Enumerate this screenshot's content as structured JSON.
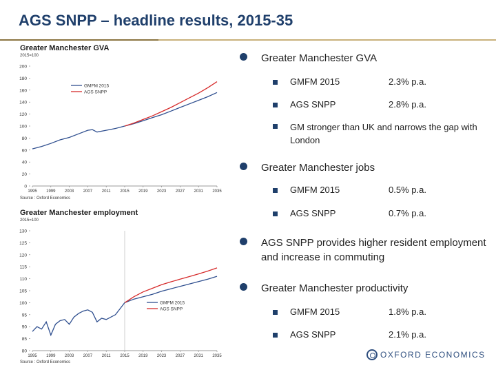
{
  "slide": {
    "title": "AGS SNPP – headline results, 2015-35",
    "logo_text": "OXFORD ECONOMICS"
  },
  "bullets": [
    {
      "text": "Greater Manchester GVA",
      "subs": [
        {
          "label": "GMFM 2015",
          "value": "2.3% p.a."
        },
        {
          "label": "AGS SNPP",
          "value": "2.8% p.a."
        },
        {
          "label": "GM stronger than UK and narrows the gap with London",
          "value": ""
        }
      ]
    },
    {
      "text": "Greater Manchester jobs",
      "subs": [
        {
          "label": "GMFM 2015",
          "value": "0.5% p.a."
        },
        {
          "label": "AGS SNPP",
          "value": "0.7% p.a."
        }
      ]
    },
    {
      "text": "AGS SNPP provides higher resident employment and increase in commuting",
      "subs": []
    },
    {
      "text": "Greater Manchester productivity",
      "subs": [
        {
          "label": "GMFM 2015",
          "value": "1.8% p.a."
        },
        {
          "label": "AGS SNPP",
          "value": "2.1% p.a."
        }
      ]
    }
  ],
  "chart_data": [
    {
      "type": "line",
      "title": "Greater Manchester GVA",
      "subtitle": "2015=100",
      "source": "Source : Oxford Economics",
      "x_ticks": [
        "1995",
        "1999",
        "2003",
        "2007",
        "2011",
        "2015",
        "2019",
        "2023",
        "2027",
        "2031",
        "2035"
      ],
      "ylim": [
        0,
        200
      ],
      "y_ticks": [
        0,
        20,
        40,
        60,
        80,
        100,
        120,
        140,
        160,
        180,
        200
      ],
      "legend_position": "top-left",
      "series": [
        {
          "name": "GMFM 2015",
          "color": "#2f4f8f",
          "x": [
            1995,
            1997,
            1999,
            2001,
            2003,
            2005,
            2007,
            2008,
            2009,
            2011,
            2013,
            2015,
            2017,
            2019,
            2021,
            2023,
            2025,
            2027,
            2029,
            2031,
            2033,
            2035
          ],
          "y": [
            62,
            66,
            71,
            77,
            81,
            87,
            93,
            94,
            90,
            93,
            96,
            100,
            104,
            109,
            114,
            119,
            125,
            131,
            137,
            143,
            149,
            156
          ]
        },
        {
          "name": "AGS SNPP",
          "color": "#d62b2b",
          "x": [
            2015,
            2017,
            2019,
            2021,
            2023,
            2025,
            2027,
            2029,
            2031,
            2033,
            2035
          ],
          "y": [
            100,
            105,
            111,
            117,
            124,
            131,
            139,
            147,
            155,
            164,
            174
          ]
        }
      ]
    },
    {
      "type": "line",
      "title": "Greater Manchester employment",
      "subtitle": "2015=100",
      "source": "Source : Oxford Economics",
      "x_ticks": [
        "1995",
        "1999",
        "2003",
        "2007",
        "2011",
        "2015",
        "2019",
        "2023",
        "2027",
        "2031",
        "2035"
      ],
      "ylim": [
        80,
        130
      ],
      "y_ticks": [
        80,
        85,
        90,
        95,
        100,
        105,
        110,
        115,
        120,
        125,
        130
      ],
      "legend_position": "center-right",
      "marker_x": 2015,
      "series": [
        {
          "name": "GMFM 2015",
          "color": "#2f4f8f",
          "x": [
            1995,
            1996,
            1997,
            1998,
            1999,
            2000,
            2001,
            2002,
            2003,
            2004,
            2005,
            2006,
            2007,
            2008,
            2009,
            2010,
            2011,
            2012,
            2013,
            2014,
            2015,
            2017,
            2019,
            2021,
            2023,
            2025,
            2027,
            2029,
            2031,
            2033,
            2035
          ],
          "y": [
            88,
            90,
            89,
            92,
            86.5,
            91,
            92.5,
            93,
            91,
            94,
            95.5,
            96.5,
            97,
            96,
            92,
            93.5,
            93,
            94,
            95,
            97.5,
            100,
            101.5,
            102.5,
            103.5,
            104.8,
            105.8,
            106.8,
            107.8,
            108.8,
            109.8,
            111
          ]
        },
        {
          "name": "AGS SNPP",
          "color": "#d62b2b",
          "x": [
            2015,
            2017,
            2019,
            2021,
            2023,
            2025,
            2027,
            2029,
            2031,
            2033,
            2035
          ],
          "y": [
            100,
            102.5,
            104.5,
            106,
            107.5,
            108.7,
            109.8,
            110.9,
            112,
            113.2,
            114.5
          ]
        }
      ]
    }
  ]
}
